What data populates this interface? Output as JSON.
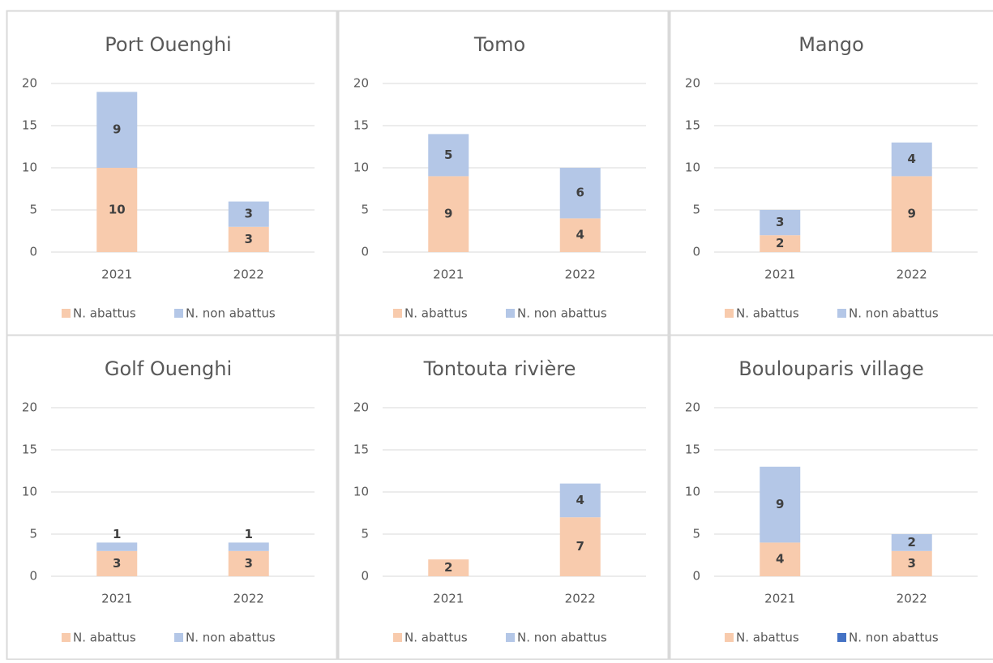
{
  "chart_data": [
    {
      "type": "bar",
      "stacked": true,
      "title": "Port Ouenghi",
      "categories": [
        "2021",
        "2022"
      ],
      "ylim": [
        0,
        20
      ],
      "yticks": [
        0,
        5,
        10,
        15,
        20
      ],
      "grid": true,
      "series": [
        {
          "name": "N. abattus",
          "color": "#f8cbad",
          "values": [
            10,
            3
          ]
        },
        {
          "name": "N. non abattus",
          "color": "#b4c7e7",
          "values": [
            9,
            3
          ]
        }
      ]
    },
    {
      "type": "bar",
      "stacked": true,
      "title": "Tomo",
      "categories": [
        "2021",
        "2022"
      ],
      "ylim": [
        0,
        20
      ],
      "yticks": [
        0,
        5,
        10,
        15,
        20
      ],
      "grid": true,
      "series": [
        {
          "name": "N. abattus",
          "color": "#f8cbad",
          "values": [
            9,
            4
          ]
        },
        {
          "name": "N. non abattus",
          "color": "#b4c7e7",
          "values": [
            5,
            6
          ]
        }
      ]
    },
    {
      "type": "bar",
      "stacked": true,
      "title": "Mango",
      "categories": [
        "2021",
        "2022"
      ],
      "ylim": [
        0,
        20
      ],
      "yticks": [
        0,
        5,
        10,
        15,
        20
      ],
      "grid": true,
      "series": [
        {
          "name": "N. abattus",
          "color": "#f8cbad",
          "values": [
            2,
            9
          ]
        },
        {
          "name": "N. non abattus",
          "color": "#b4c7e7",
          "values": [
            3,
            4
          ]
        }
      ]
    },
    {
      "type": "bar",
      "stacked": true,
      "title": "Golf Ouenghi",
      "categories": [
        "2021",
        "2022"
      ],
      "ylim": [
        0,
        20
      ],
      "yticks": [
        0,
        5,
        10,
        15,
        20
      ],
      "grid": true,
      "series": [
        {
          "name": "N. abattus",
          "color": "#f8cbad",
          "values": [
            3,
            3
          ]
        },
        {
          "name": "N. non abattus",
          "color": "#b4c7e7",
          "values": [
            1,
            1
          ]
        }
      ]
    },
    {
      "type": "bar",
      "stacked": true,
      "title": "Tontouta rivière",
      "categories": [
        "2021",
        "2022"
      ],
      "ylim": [
        0,
        20
      ],
      "yticks": [
        0,
        5,
        10,
        15,
        20
      ],
      "grid": true,
      "series": [
        {
          "name": "N. abattus",
          "color": "#f8cbad",
          "values": [
            2,
            7
          ]
        },
        {
          "name": "N. non abattus",
          "color": "#b4c7e7",
          "values": [
            null,
            4
          ]
        }
      ]
    },
    {
      "type": "bar",
      "stacked": true,
      "title": "Boulouparis village",
      "categories": [
        "2021",
        "2022"
      ],
      "ylim": [
        0,
        20
      ],
      "yticks": [
        0,
        5,
        10,
        15,
        20
      ],
      "grid": true,
      "series": [
        {
          "name": "N. abattus",
          "color": "#f8cbad",
          "values": [
            4,
            3
          ]
        },
        {
          "name": "N. non abattus",
          "color": "#b4c7e7",
          "legend_color": "#4472c4",
          "values": [
            9,
            2
          ]
        }
      ]
    }
  ]
}
